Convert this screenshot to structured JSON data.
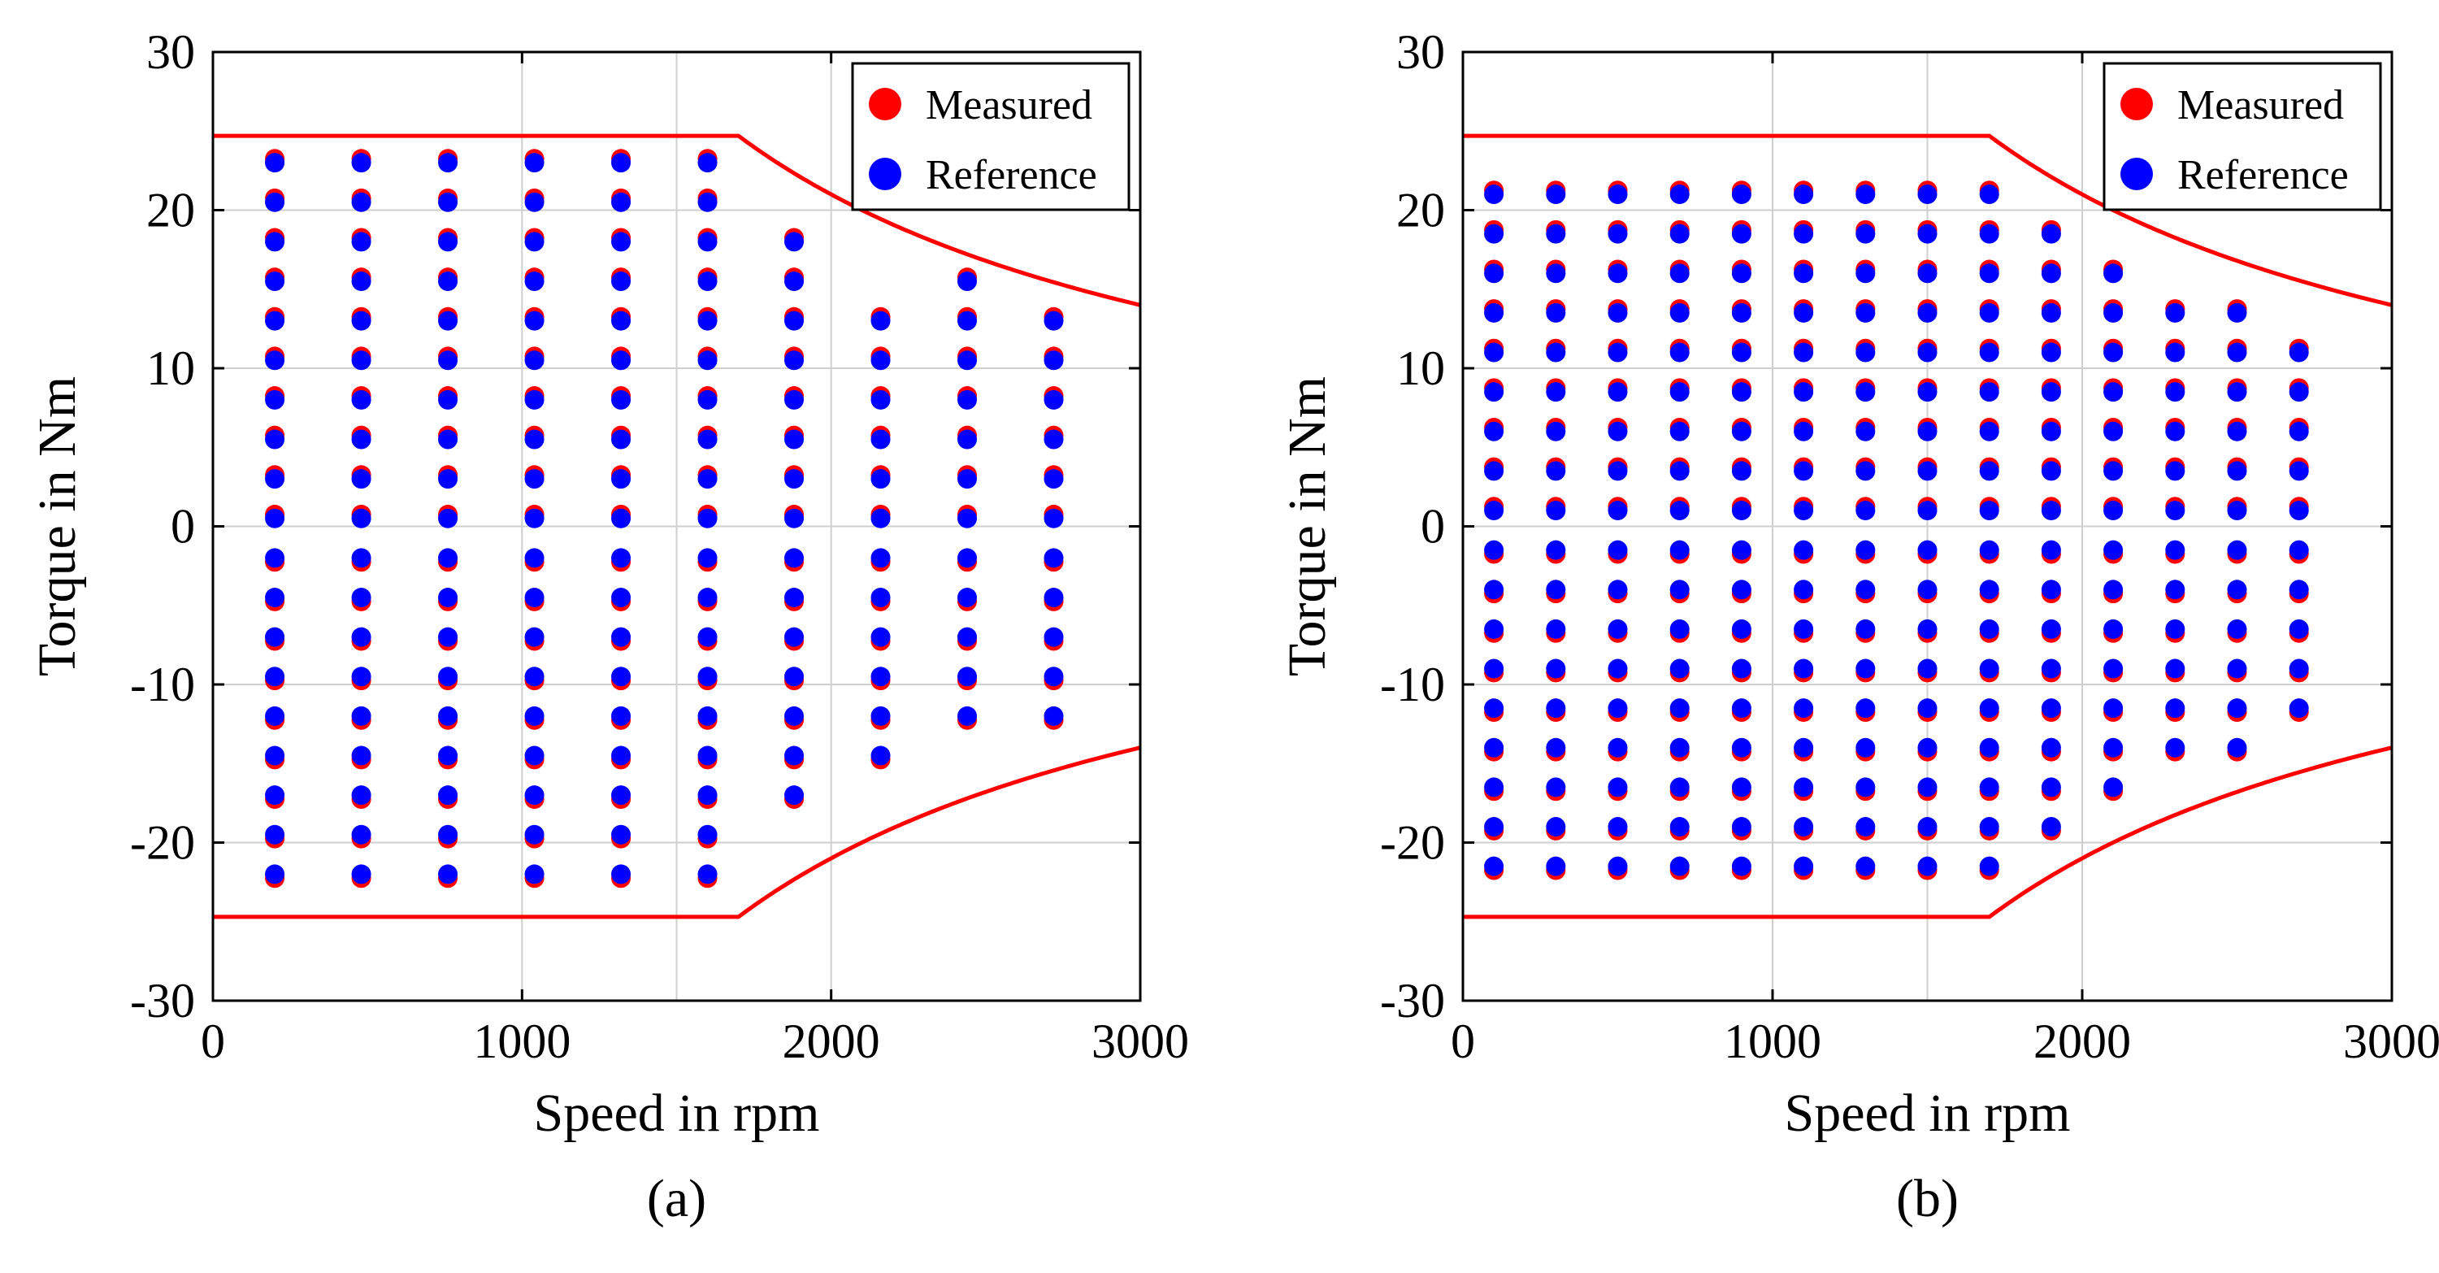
{
  "chart_data": [
    {
      "type": "scatter",
      "panel_label": "(a)",
      "xlabel": "Speed in rpm",
      "ylabel": "Torque in Nm",
      "xlim": [
        0,
        3000
      ],
      "ylim": [
        -30,
        30
      ],
      "xticks": [
        0,
        1000,
        2000,
        3000
      ],
      "yticks": [
        30,
        20,
        10,
        0,
        -10,
        -20,
        -30
      ],
      "grid_x": [
        1000,
        1500,
        2000
      ],
      "grid_y": [
        20,
        10,
        0,
        -10,
        -20
      ],
      "legend": {
        "position": "top-right",
        "entries": [
          {
            "name": "Measured",
            "color": "#ff0000"
          },
          {
            "name": "Reference",
            "color": "#0000ff"
          }
        ]
      },
      "limit_curve": {
        "name": "torque limit",
        "color": "#ff0000",
        "t_max": 24.7,
        "base_speed": 1700,
        "x_end": 3000
      },
      "columns": [
        {
          "speed": 200,
          "t_max": 23.0,
          "t_min": -23.0,
          "step": 2.5
        },
        {
          "speed": 480,
          "t_max": 23.0,
          "t_min": -23.0,
          "step": 2.5
        },
        {
          "speed": 760,
          "t_max": 23.0,
          "t_min": -23.0,
          "step": 2.5
        },
        {
          "speed": 1040,
          "t_max": 23.0,
          "t_min": -23.0,
          "step": 2.5
        },
        {
          "speed": 1320,
          "t_max": 23.0,
          "t_min": -23.0,
          "step": 2.5
        },
        {
          "speed": 1600,
          "t_max": 23.0,
          "t_min": -23.0,
          "step": 2.5
        },
        {
          "speed": 1880,
          "t_max": 18.0,
          "t_min": -18.0,
          "step": 2.5
        },
        {
          "speed": 2160,
          "t_max": 13.0,
          "t_min": -15.5,
          "step": 2.5
        },
        {
          "speed": 2440,
          "t_max": 15.5,
          "t_min": -13.0,
          "step": 2.5
        },
        {
          "speed": 2720,
          "t_max": 13.0,
          "t_min": -13.0,
          "step": 2.5
        }
      ],
      "series": [
        {
          "name": "Measured",
          "color": "#ff0000"
        },
        {
          "name": "Reference",
          "color": "#0000ff"
        }
      ]
    },
    {
      "type": "scatter",
      "panel_label": "(b)",
      "xlabel": "Speed in rpm",
      "ylabel": "Torque in Nm",
      "xlim": [
        0,
        3000
      ],
      "ylim": [
        -30,
        30
      ],
      "xticks": [
        0,
        1000,
        2000,
        3000
      ],
      "yticks": [
        30,
        20,
        10,
        0,
        -10,
        -20,
        -30
      ],
      "grid_x": [
        1000,
        1500,
        2000
      ],
      "grid_y": [
        20,
        10,
        0,
        -10,
        -20
      ],
      "legend": {
        "position": "top-right",
        "entries": [
          {
            "name": "Measured",
            "color": "#ff0000"
          },
          {
            "name": "Reference",
            "color": "#0000ff"
          }
        ]
      },
      "limit_curve": {
        "name": "torque limit",
        "color": "#ff0000",
        "t_max": 24.7,
        "base_speed": 1700,
        "x_end": 3000
      },
      "columns": [
        {
          "speed": 100,
          "t_max": 21.0,
          "t_min": -21.0,
          "step": 2.5
        },
        {
          "speed": 300,
          "t_max": 21.0,
          "t_min": -21.0,
          "step": 2.5
        },
        {
          "speed": 500,
          "t_max": 21.0,
          "t_min": -21.0,
          "step": 2.5
        },
        {
          "speed": 700,
          "t_max": 21.0,
          "t_min": -21.0,
          "step": 2.5
        },
        {
          "speed": 900,
          "t_max": 21.0,
          "t_min": -21.0,
          "step": 2.5
        },
        {
          "speed": 1100,
          "t_max": 21.0,
          "t_min": -21.0,
          "step": 2.5
        },
        {
          "speed": 1300,
          "t_max": 21.0,
          "t_min": -21.0,
          "step": 2.5
        },
        {
          "speed": 1500,
          "t_max": 21.0,
          "t_min": -21.0,
          "step": 2.5
        },
        {
          "speed": 1700,
          "t_max": 21.0,
          "t_min": -21.0,
          "step": 2.5
        },
        {
          "speed": 1900,
          "t_max": 18.5,
          "t_min": -18.5,
          "step": 2.5
        },
        {
          "speed": 2100,
          "t_max": 16.0,
          "t_min": -16.0,
          "step": 2.5
        },
        {
          "speed": 2300,
          "t_max": 13.5,
          "t_min": -13.5,
          "step": 2.5
        },
        {
          "speed": 2500,
          "t_max": 13.5,
          "t_min": -13.5,
          "step": 2.5
        },
        {
          "speed": 2700,
          "t_max": 11.0,
          "t_min": -11.0,
          "step": 2.5
        }
      ],
      "series": [
        {
          "name": "Measured",
          "color": "#ff0000"
        },
        {
          "name": "Reference",
          "color": "#0000ff"
        }
      ]
    }
  ]
}
